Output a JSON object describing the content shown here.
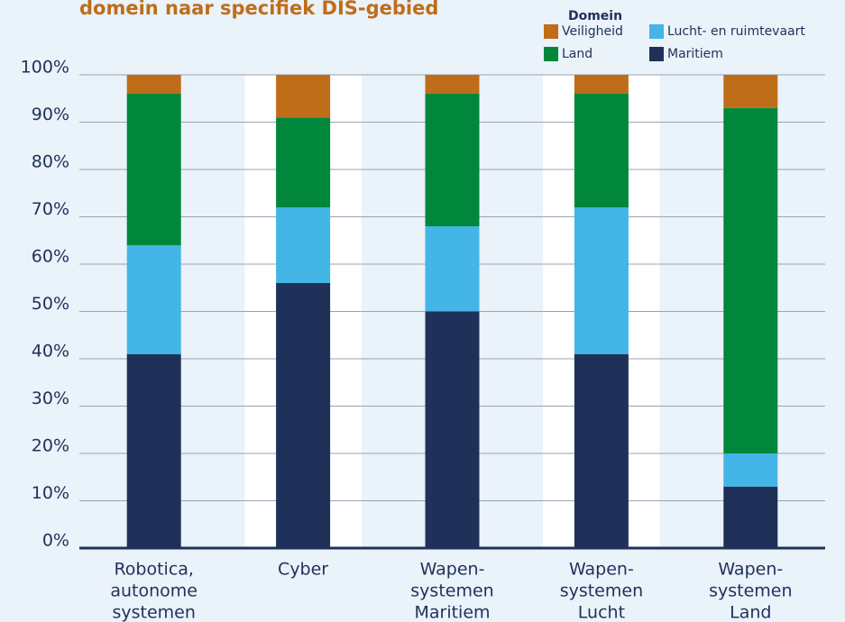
{
  "chart_data": {
    "type": "stacked_bar",
    "title": "domein naar specifiek DIS-gebied",
    "legend_title": "Domein",
    "categories": [
      [
        "Robotica,",
        "autonome",
        "systemen"
      ],
      [
        "Cyber"
      ],
      [
        "Wapen-",
        "systemen",
        "Maritiem"
      ],
      [
        "Wapen-",
        "systemen",
        "Lucht"
      ],
      [
        "Wapen-",
        "systemen",
        "Land"
      ]
    ],
    "series": [
      {
        "name": "Maritiem",
        "color": "#1f3159",
        "values": [
          41,
          56,
          50,
          41,
          13
        ]
      },
      {
        "name": "Lucht- en ruimtevaart",
        "color": "#43b5e6",
        "values": [
          23,
          16,
          18,
          31,
          7
        ]
      },
      {
        "name": "Land",
        "color": "#00873c",
        "values": [
          32,
          19,
          28,
          24,
          73
        ]
      },
      {
        "name": "Veiligheid",
        "color": "#bf6d18",
        "values": [
          4,
          9,
          4,
          4,
          7
        ]
      }
    ],
    "ylim": [
      0,
      100
    ],
    "yticks": [
      {
        "value": 0,
        "label": "0%"
      },
      {
        "value": 10,
        "label": "10%"
      },
      {
        "value": 20,
        "label": "20%"
      },
      {
        "value": 30,
        "label": "30%"
      },
      {
        "value": 40,
        "label": "40%"
      },
      {
        "value": 50,
        "label": "50%"
      },
      {
        "value": 60,
        "label": "60%"
      },
      {
        "value": 70,
        "label": "70%"
      },
      {
        "value": 80,
        "label": "80%"
      },
      {
        "value": 90,
        "label": "90%"
      },
      {
        "value": 100,
        "label": "100%"
      }
    ],
    "grid": true
  }
}
